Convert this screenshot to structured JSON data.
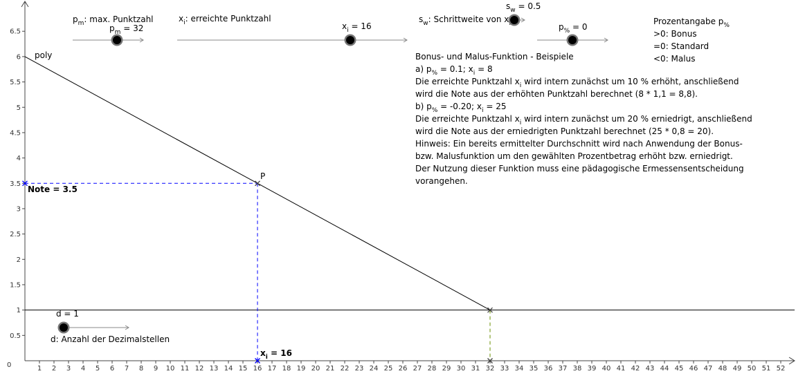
{
  "chart_data": {
    "type": "line",
    "xlim": [
      0,
      52.5
    ],
    "ylim": [
      0,
      7
    ],
    "x_ticks": [
      1,
      2,
      3,
      4,
      5,
      6,
      7,
      8,
      9,
      10,
      11,
      12,
      13,
      14,
      15,
      16,
      17,
      18,
      19,
      20,
      21,
      22,
      23,
      24,
      25,
      26,
      27,
      28,
      29,
      30,
      31,
      32,
      33,
      34,
      35,
      36,
      37,
      38,
      39,
      40,
      41,
      42,
      43,
      44,
      45,
      46,
      47,
      48,
      49,
      50,
      51,
      52
    ],
    "y_ticks": [
      0.5,
      1,
      1.5,
      2,
      2.5,
      3,
      3.5,
      4,
      4.5,
      5,
      5.5,
      6,
      6.5
    ],
    "origin_label": "0",
    "series": [
      {
        "name": "poly",
        "color": "#000000",
        "points": [
          [
            0,
            6
          ],
          [
            32,
            1
          ]
        ]
      }
    ],
    "horizontal_line": {
      "y": 1,
      "color": "#000000"
    },
    "point_P": {
      "x": 16,
      "y": 3.5,
      "label": "P"
    },
    "guides": {
      "blue": {
        "x": 16,
        "y": 3.5,
        "color": "#0000ff"
      },
      "green": {
        "x": 32,
        "y": 1,
        "color": "#6a8f00"
      }
    },
    "annotations": {
      "note_label": "Note = 3.5",
      "xi_label_main": "x",
      "xi_label_sub": "i",
      "xi_label_rest": " = 16"
    }
  },
  "sliders": {
    "pm": {
      "desc_main": "p",
      "desc_sub": "m",
      "desc_rest": ": max. Punktzahl",
      "val_main": "p",
      "val_sub": "m",
      "val_rest": " = 32"
    },
    "xi": {
      "desc_main": "x",
      "desc_sub": "i",
      "desc_rest": ": erreichte Punktzahl",
      "val_main": "x",
      "val_sub": "i",
      "val_rest": " = 16"
    },
    "sw": {
      "desc_main": "s",
      "desc_sub": "w",
      "desc_rest": ": Schrittweite von x",
      "desc_sub2": "i",
      "val_main": "s",
      "val_sub": "w",
      "val_rest": " = 0.5"
    },
    "pp": {
      "val_main": "p",
      "val_sub": "%",
      "val_rest": " = 0"
    },
    "d": {
      "val": "d = 1",
      "desc": "d: Anzahl der Dezimalstellen"
    }
  },
  "prozent": {
    "title_main": "Prozentangabe p",
    "title_sub": "%",
    "lines": [
      ">0: Bonus",
      "=0: Standard",
      "<0: Malus"
    ]
  },
  "info": {
    "title": "Bonus- und Malus-Funktion - Beispiele",
    "a_p": "a) p",
    "a_sub": "%",
    "a_rest": " =  0.1; x",
    "a_sub2": "i",
    "a_rest2": " = 8",
    "a_l1_pre": "Die erreichte Punktzahl x",
    "a_l1_sub": "i",
    "a_l1_post": " wird intern zunächst um 10 % erhöht, anschließend",
    "a_l2": "wird die Note aus der erhöhten Punktzahl berechnet (8 * 1,1 = 8,8).",
    "b_p": "b) p",
    "b_sub": "%",
    "b_rest": " =  -0.20; x",
    "b_sub2": "i",
    "b_rest2": " = 25",
    "b_l1_pre": "Die erreichte Punktzahl x",
    "b_l1_sub": "i",
    "b_l1_post": " wird intern zunächst um 20 % erniedrigt, anschließend",
    "b_l2": "wird die Note aus der erniedrigten Punktzahl berechnet (25 * 0,8 = 20).",
    "h1": "Hinweis: Ein bereits ermittelter Durchschnitt wird nach Anwendung der Bonus-",
    "h2": "bzw. Malusfunktion um den gewählten Prozentbetrag erhöht bzw. erniedrigt.",
    "h3": "Der Nutzung dieser Funktion muss eine pädagogische Ermessensentscheidung",
    "h4": "vorangehen."
  }
}
